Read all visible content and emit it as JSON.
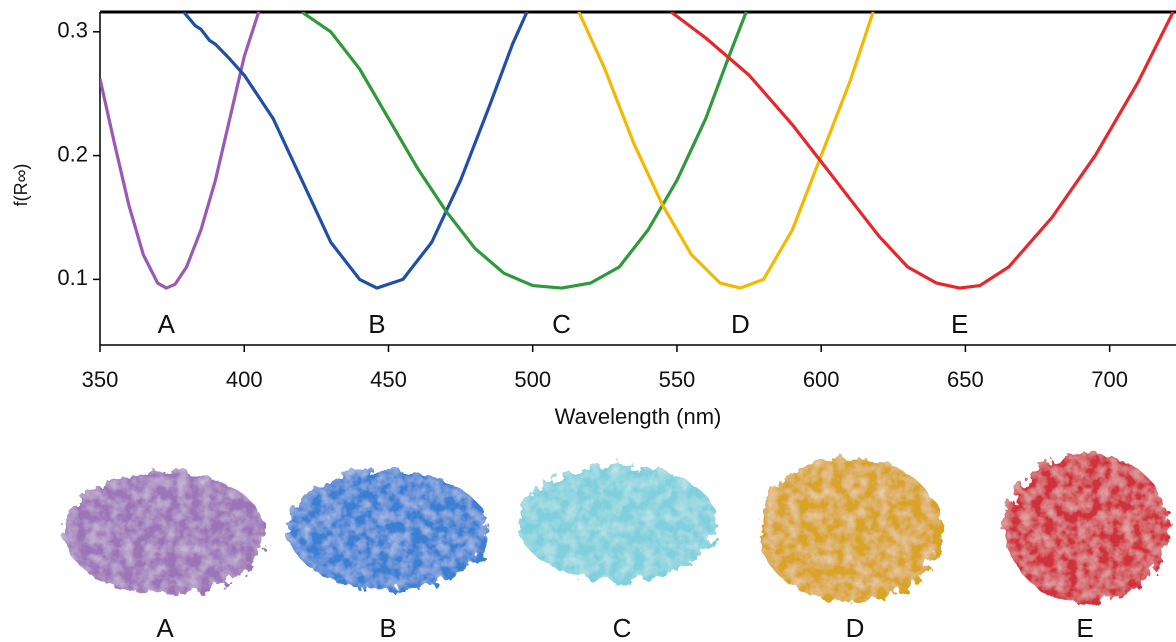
{
  "chart_data": {
    "type": "line",
    "x_label": "Wavelength (nm)",
    "y_label": "f(R∞)",
    "xlim": [
      350,
      723
    ],
    "ylim": [
      0.047,
      0.316
    ],
    "xticks": [
      350,
      400,
      450,
      500,
      550,
      600,
      650,
      700
    ],
    "yticks": [
      0.1,
      0.2,
      0.3
    ],
    "series": [
      {
        "name": "A",
        "color": "#9b59b6",
        "x": [
          350,
          355,
          360,
          365,
          370,
          373,
          376,
          380,
          385,
          390,
          395,
          400,
          405
        ],
        "values": [
          0.262,
          0.21,
          0.16,
          0.12,
          0.097,
          0.093,
          0.096,
          0.11,
          0.14,
          0.18,
          0.23,
          0.28,
          0.316
        ]
      },
      {
        "name": "B",
        "color": "#1f4fa8",
        "x": [
          379,
          383,
          385,
          388,
          390,
          395,
          400,
          410,
          420,
          430,
          440,
          446,
          455,
          465,
          475,
          485,
          493,
          498
        ],
        "values": [
          0.316,
          0.305,
          0.302,
          0.293,
          0.29,
          0.278,
          0.265,
          0.23,
          0.18,
          0.13,
          0.1,
          0.093,
          0.1,
          0.13,
          0.18,
          0.24,
          0.29,
          0.316
        ]
      },
      {
        "name": "C",
        "color": "#2e9a3a",
        "x": [
          420,
          430,
          440,
          450,
          460,
          470,
          480,
          490,
          500,
          510,
          520,
          530,
          540,
          550,
          560,
          568,
          574
        ],
        "values": [
          0.316,
          0.3,
          0.27,
          0.23,
          0.19,
          0.155,
          0.125,
          0.105,
          0.095,
          0.093,
          0.097,
          0.11,
          0.14,
          0.18,
          0.23,
          0.28,
          0.316
        ]
      },
      {
        "name": "D",
        "color": "#f5b800",
        "x": [
          516,
          525,
          535,
          545,
          555,
          565,
          572,
          580,
          590,
          600,
          610,
          618
        ],
        "values": [
          0.316,
          0.27,
          0.21,
          0.16,
          0.12,
          0.097,
          0.093,
          0.1,
          0.14,
          0.2,
          0.26,
          0.316
        ]
      },
      {
        "name": "E",
        "color": "#e8262b",
        "x": [
          548,
          560,
          575,
          590,
          600,
          610,
          620,
          630,
          640,
          648,
          655,
          665,
          680,
          695,
          710,
          722
        ],
        "values": [
          0.316,
          0.295,
          0.265,
          0.225,
          0.195,
          0.165,
          0.135,
          0.11,
          0.097,
          0.093,
          0.095,
          0.11,
          0.15,
          0.2,
          0.26,
          0.316
        ]
      }
    ]
  }
}
